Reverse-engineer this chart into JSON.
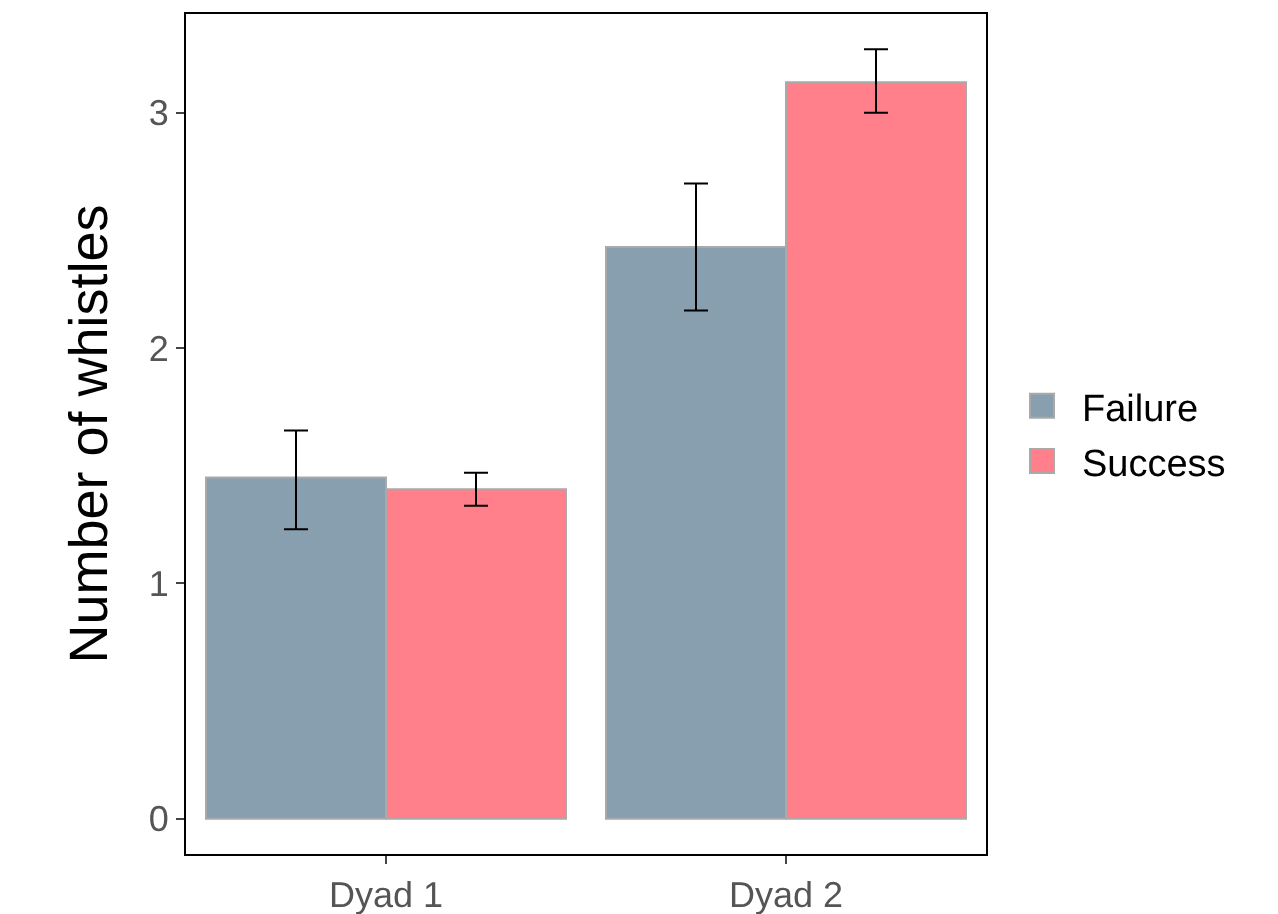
{
  "chart_data": {
    "type": "bar",
    "ylabel": "Number of whistles",
    "categories": [
      "Dyad 1",
      "Dyad 2"
    ],
    "series": [
      {
        "name": "Failure",
        "color": "#879fae",
        "values": [
          1.45,
          2.43
        ],
        "errors": [
          [
            1.23,
            1.65
          ],
          [
            2.16,
            2.7
          ]
        ]
      },
      {
        "name": "Success",
        "color": "#ff7f8a",
        "values": [
          1.4,
          3.13
        ],
        "errors": [
          [
            1.33,
            1.47
          ],
          [
            3.0,
            3.27
          ]
        ]
      }
    ],
    "ylim": [
      -0.15,
      3.42
    ],
    "yticks": [
      0,
      1,
      2,
      3
    ],
    "grid": false,
    "legend": "right"
  }
}
